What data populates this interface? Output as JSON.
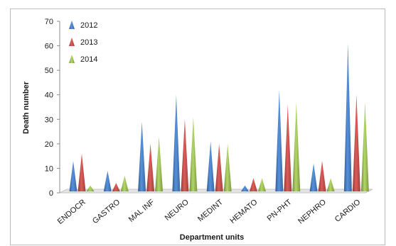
{
  "chart_data": {
    "type": "bar",
    "title": "",
    "xlabel": "Department units",
    "ylabel": "Death number",
    "ylim": [
      0,
      70
    ],
    "yticks": [
      0,
      10,
      20,
      30,
      40,
      50,
      60,
      70
    ],
    "grid": false,
    "legend_position": "top-left",
    "categories": [
      "ENDOCR",
      "GASTRO",
      "MAL INF",
      "NEURO",
      "MEDINT",
      "HEMATO",
      "PN-PHT",
      "NEPHRO",
      "CARDIO"
    ],
    "series": [
      {
        "name": "2012",
        "color": "#4a7ebf",
        "values": [
          13,
          9,
          29,
          40,
          21,
          3,
          42,
          12,
          61
        ]
      },
      {
        "name": "2013",
        "color": "#c0504d",
        "values": [
          16,
          4,
          20,
          30,
          20,
          6,
          36,
          13,
          40
        ]
      },
      {
        "name": "2014",
        "color": "#9bbb59",
        "values": [
          3,
          7,
          23,
          31,
          20,
          6,
          37,
          6,
          37
        ]
      }
    ]
  }
}
